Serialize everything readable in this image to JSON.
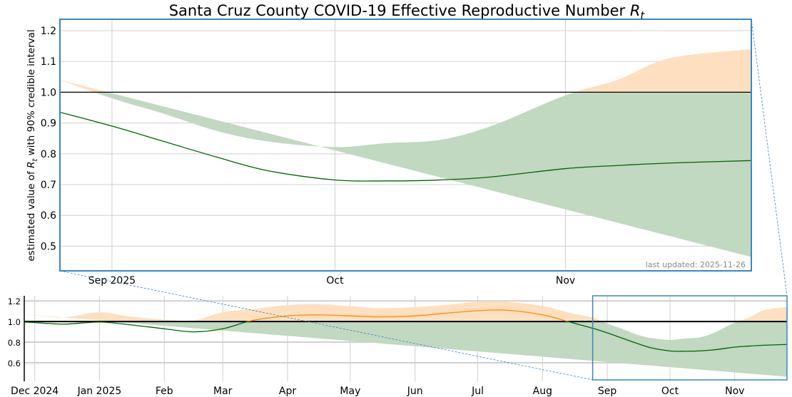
{
  "chart_data": [
    {
      "type": "area",
      "panel": "zoomed",
      "title": "Santa Cruz County COVID-19 Effective Reproductive Number ",
      "title_symbol": "R",
      "title_subscript": "t",
      "ylabel_prefix": "estimated value of ",
      "ylabel_symbol": "R",
      "ylabel_subscript": "t",
      "ylabel_suffix": " with 90% credible interval",
      "annotation": "last updated: 2025-11-26",
      "xlim": [
        "2025-08-25",
        "2025-11-26"
      ],
      "ylim": [
        0.42,
        1.237
      ],
      "yticks": [
        0.5,
        0.6,
        0.7,
        0.8,
        0.9,
        1.0,
        1.1,
        1.2
      ],
      "ytick_labels": [
        "0.5",
        "0.6",
        "0.7",
        "0.8",
        "0.9",
        "1.0",
        "1.1",
        "1.2"
      ],
      "xticks": [
        "2025-09-01",
        "2025-10-01",
        "2025-11-01"
      ],
      "xtick_labels": [
        "Sep 2025",
        "Oct",
        "Nov"
      ],
      "reference_line": 1.0,
      "grid": true
    },
    {
      "type": "area",
      "panel": "overview",
      "xlim": [
        "2024-11-26",
        "2025-11-26"
      ],
      "ylim": [
        0.42,
        1.25
      ],
      "yticks": [
        0.6,
        0.8,
        1.0,
        1.2
      ],
      "ytick_labels": [
        "0.6",
        "0.8",
        "1.0",
        "1.2"
      ],
      "xticks": [
        "2024-12-01",
        "2025-01-01",
        "2025-02-01",
        "2025-03-01",
        "2025-04-01",
        "2025-05-01",
        "2025-06-01",
        "2025-07-01",
        "2025-08-01",
        "2025-09-01",
        "2025-10-01",
        "2025-11-01"
      ],
      "xtick_labels": [
        "Dec 2024",
        "Jan 2025",
        "Feb",
        "Mar",
        "Apr",
        "May",
        "Jun",
        "Jul",
        "Aug",
        "Sep",
        "Oct",
        "Nov"
      ],
      "reference_line": 1.0,
      "grid": true,
      "zoom_window": [
        "2025-08-25",
        "2025-11-26"
      ]
    }
  ],
  "series": {
    "dates": [
      "2024-11-26",
      "2024-12-01",
      "2024-12-15",
      "2025-01-01",
      "2025-01-15",
      "2025-02-01",
      "2025-02-15",
      "2025-03-01",
      "2025-03-15",
      "2025-04-01",
      "2025-04-15",
      "2025-05-01",
      "2025-05-15",
      "2025-06-01",
      "2025-06-15",
      "2025-07-01",
      "2025-07-15",
      "2025-08-01",
      "2025-08-15",
      "2025-08-25",
      "2025-09-01",
      "2025-09-08",
      "2025-09-15",
      "2025-09-22",
      "2025-10-01",
      "2025-10-08",
      "2025-10-15",
      "2025-10-22",
      "2025-11-01",
      "2025-11-08",
      "2025-11-15",
      "2025-11-26"
    ],
    "median": [
      0.995,
      0.99,
      0.975,
      0.995,
      0.97,
      0.93,
      0.9,
      0.93,
      1.01,
      1.055,
      1.065,
      1.055,
      1.045,
      1.055,
      1.08,
      1.105,
      1.11,
      1.065,
      0.99,
      0.935,
      0.89,
      0.84,
      0.79,
      0.745,
      0.715,
      0.712,
      0.715,
      0.725,
      0.752,
      0.762,
      0.77,
      0.778
    ],
    "lower": [
      0.92,
      0.91,
      0.89,
      0.92,
      0.9,
      0.82,
      0.73,
      0.68,
      0.88,
      0.97,
      0.99,
      0.97,
      0.95,
      0.97,
      1.0,
      1.03,
      1.04,
      0.99,
      0.88,
      0.79,
      0.77,
      0.74,
      0.7,
      0.63,
      0.575,
      0.555,
      0.545,
      0.535,
      0.51,
      0.5,
      0.475,
      0.465
    ],
    "upper": [
      1.07,
      1.06,
      1.04,
      1.09,
      1.05,
      1.02,
      1.01,
      1.09,
      1.12,
      1.16,
      1.17,
      1.15,
      1.13,
      1.14,
      1.16,
      1.19,
      1.19,
      1.15,
      1.08,
      1.04,
      0.98,
      0.93,
      0.875,
      0.84,
      0.822,
      0.835,
      0.845,
      0.89,
      0.99,
      1.04,
      1.11,
      1.14
    ]
  },
  "colors": {
    "band_above": "#fedfbf",
    "band_below": "#c1d8c1",
    "median_above": "#ff8c00",
    "median_below": "#006400",
    "reference": "#000000",
    "zoom_box": "#3a87c2",
    "grid": "#d0d0d0"
  }
}
